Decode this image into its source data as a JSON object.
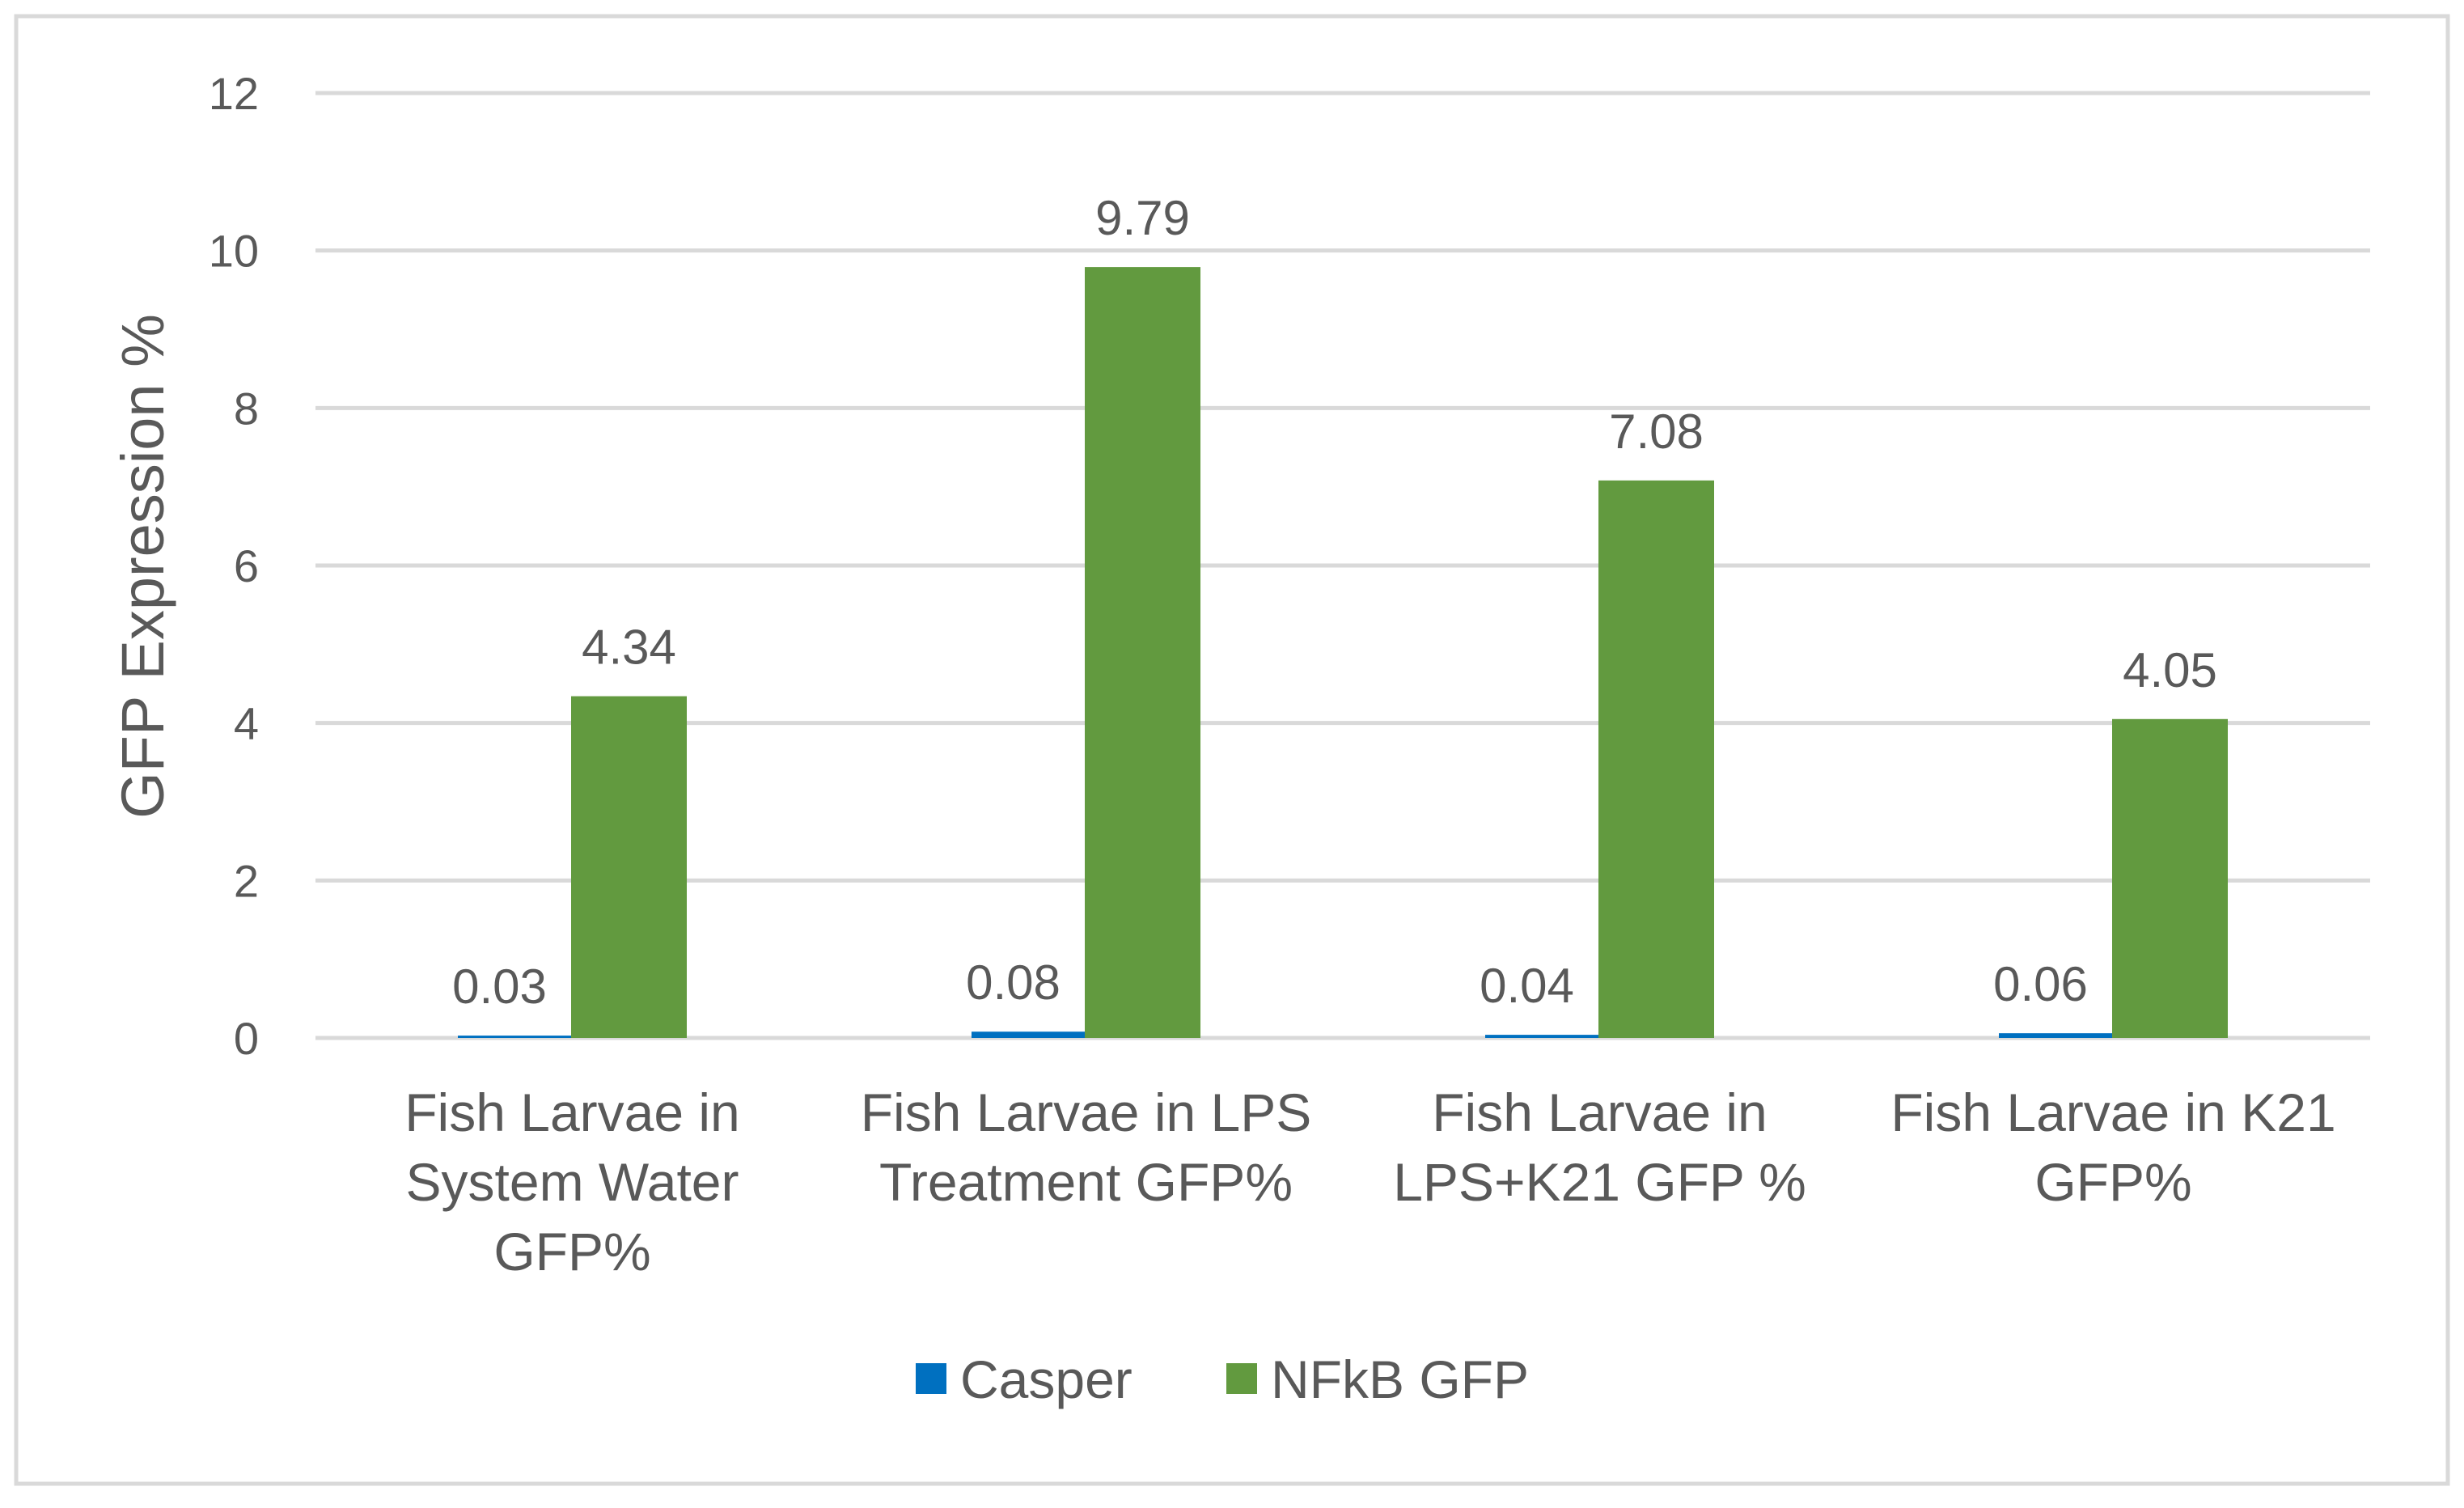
{
  "chart_data": {
    "type": "bar",
    "title": "",
    "xlabel": "",
    "ylabel": "GFP Expression %",
    "ylim": [
      0,
      12
    ],
    "yticks": [
      0,
      2,
      4,
      6,
      8,
      10,
      12
    ],
    "grid": true,
    "legend_position": "bottom",
    "categories": [
      [
        "Fish Larvae in",
        "System Water",
        "GFP%"
      ],
      [
        "Fish Larvae in LPS",
        "Treatment GFP%"
      ],
      [
        "Fish Larvae in",
        "LPS+K21 GFP %"
      ],
      [
        "Fish Larvae in K21",
        "GFP%"
      ]
    ],
    "series": [
      {
        "name": "Casper",
        "color": "#0070C0",
        "values": [
          0.03,
          0.08,
          0.04,
          0.06
        ],
        "labels": [
          "0.03",
          "0.08",
          "0.04",
          "0.06"
        ]
      },
      {
        "name": "NFkB GFP",
        "color": "#629A3F",
        "values": [
          4.34,
          9.79,
          7.08,
          4.05
        ],
        "labels": [
          "4.34",
          "9.79",
          "7.08",
          "4.05"
        ]
      }
    ]
  }
}
